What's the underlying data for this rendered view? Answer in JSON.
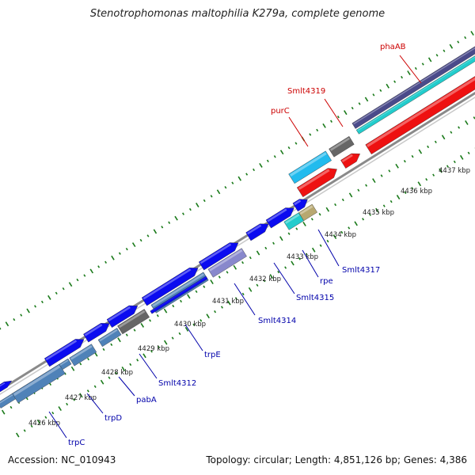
{
  "title": "Stenotrophomonas maltophilia K279a, complete genome",
  "footer": {
    "accession": "Accession: NC_010943",
    "summary": "Topology: circular; Length: 4,851,126 bp; Genes: 4,386"
  },
  "colors": {
    "blue": "#0b0bf0",
    "steel": "#4f82b8",
    "gray": "#666666",
    "red": "#ee1111",
    "cyan": "#22cccc",
    "lightblue": "#22bbee",
    "khaki": "#b8a870",
    "violet": "#8888cc",
    "navy": "#4a4a8a",
    "tick": "#1a7a1a",
    "backbone": "#8a8a8a",
    "label_red": "#cc0000",
    "label_blue": "#0000aa"
  },
  "ticks": [
    "4426 kbp",
    "4427 kbp",
    "4428 kbp",
    "4429 kbp",
    "4430 kbp",
    "4431 kbp",
    "4432 kbp",
    "4433 kbp",
    "4434 kbp",
    "4435 kbp",
    "4436 kbp",
    "4437 kbp"
  ],
  "gene_labels": [
    {
      "text": "phaAB",
      "color": "red"
    },
    {
      "text": "Smlt4319",
      "color": "red"
    },
    {
      "text": "purC",
      "color": "red"
    },
    {
      "text": "Smlt4317",
      "color": "blue"
    },
    {
      "text": "rpe",
      "color": "blue"
    },
    {
      "text": "Smlt4315",
      "color": "blue"
    },
    {
      "text": "Smlt4314",
      "color": "blue"
    },
    {
      "text": "trpE",
      "color": "blue"
    },
    {
      "text": "Smlt4312",
      "color": "blue"
    },
    {
      "text": "pabA",
      "color": "blue"
    },
    {
      "text": "trpD",
      "color": "blue"
    },
    {
      "text": "trpC",
      "color": "blue"
    }
  ]
}
